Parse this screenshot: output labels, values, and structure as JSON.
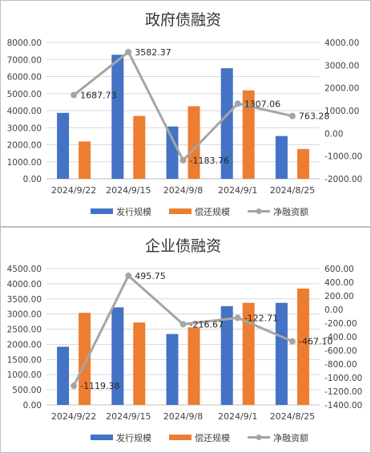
{
  "colors": {
    "issue": "#4472C4",
    "repay": "#ED7D31",
    "net": "#A5A5A5",
    "grid": "#d9d9d9",
    "axis": "#bfbfbf"
  },
  "chart_data": [
    {
      "type": "bar",
      "title": "政府债融资",
      "categories": [
        "2024/9/22",
        "2024/9/15",
        "2024/9/8",
        "2024/9/1",
        "2024/8/25"
      ],
      "series": [
        {
          "name": "发行规模",
          "kind": "bar",
          "axis": "left",
          "values": [
            3870,
            7280,
            3070,
            6490,
            2510
          ]
        },
        {
          "name": "偿还规模",
          "kind": "bar",
          "axis": "left",
          "values": [
            2190,
            3690,
            4260,
            5190,
            1750
          ]
        },
        {
          "name": "净融资额",
          "kind": "line",
          "axis": "right",
          "values": [
            1687.73,
            3582.37,
            -1183.76,
            1307.06,
            763.28
          ],
          "labels": [
            "1687.73",
            "3582.37",
            "-1183.76",
            "1307.06",
            "763.28"
          ]
        }
      ],
      "ylim": [
        0,
        8000
      ],
      "yticks": [
        "0.00",
        "1000.00",
        "2000.00",
        "3000.00",
        "4000.00",
        "5000.00",
        "6000.00",
        "7000.00",
        "8000.00"
      ],
      "y2lim": [
        -2000,
        4000
      ],
      "y2ticks": [
        "-2000.00",
        "-1000.00",
        "0.00",
        "1000.00",
        "2000.00",
        "3000.00",
        "4000.00"
      ],
      "grid": true,
      "legend": "bottom"
    },
    {
      "type": "bar",
      "title": "企业债融资",
      "categories": [
        "2024/9/22",
        "2024/9/15",
        "2024/9/8",
        "2024/9/1",
        "2024/8/25"
      ],
      "series": [
        {
          "name": "发行规模",
          "kind": "bar",
          "axis": "left",
          "values": [
            1920,
            3220,
            2340,
            3260,
            3370
          ]
        },
        {
          "name": "偿还规模",
          "kind": "bar",
          "axis": "left",
          "values": [
            3040,
            2720,
            2560,
            3370,
            3840
          ]
        },
        {
          "name": "净融资额",
          "kind": "line",
          "axis": "right",
          "values": [
            -1119.38,
            495.75,
            -216.67,
            -122.71,
            -467.1
          ],
          "labels": [
            "-1119.38",
            "495.75",
            "-216.67",
            "-122.71",
            "-467.10"
          ]
        }
      ],
      "ylim": [
        0,
        4500
      ],
      "yticks": [
        "0.00",
        "500.00",
        "1000.00",
        "1500.00",
        "2000.00",
        "2500.00",
        "3000.00",
        "3500.00",
        "4000.00",
        "4500.00"
      ],
      "y2lim": [
        -1400,
        600
      ],
      "y2ticks": [
        "-1400.00",
        "-1200.00",
        "-1000.00",
        "-800.00",
        "-600.00",
        "-400.00",
        "-200.00",
        "0.00",
        "200.00",
        "400.00",
        "600.00"
      ],
      "grid": true,
      "legend": "bottom"
    }
  ]
}
